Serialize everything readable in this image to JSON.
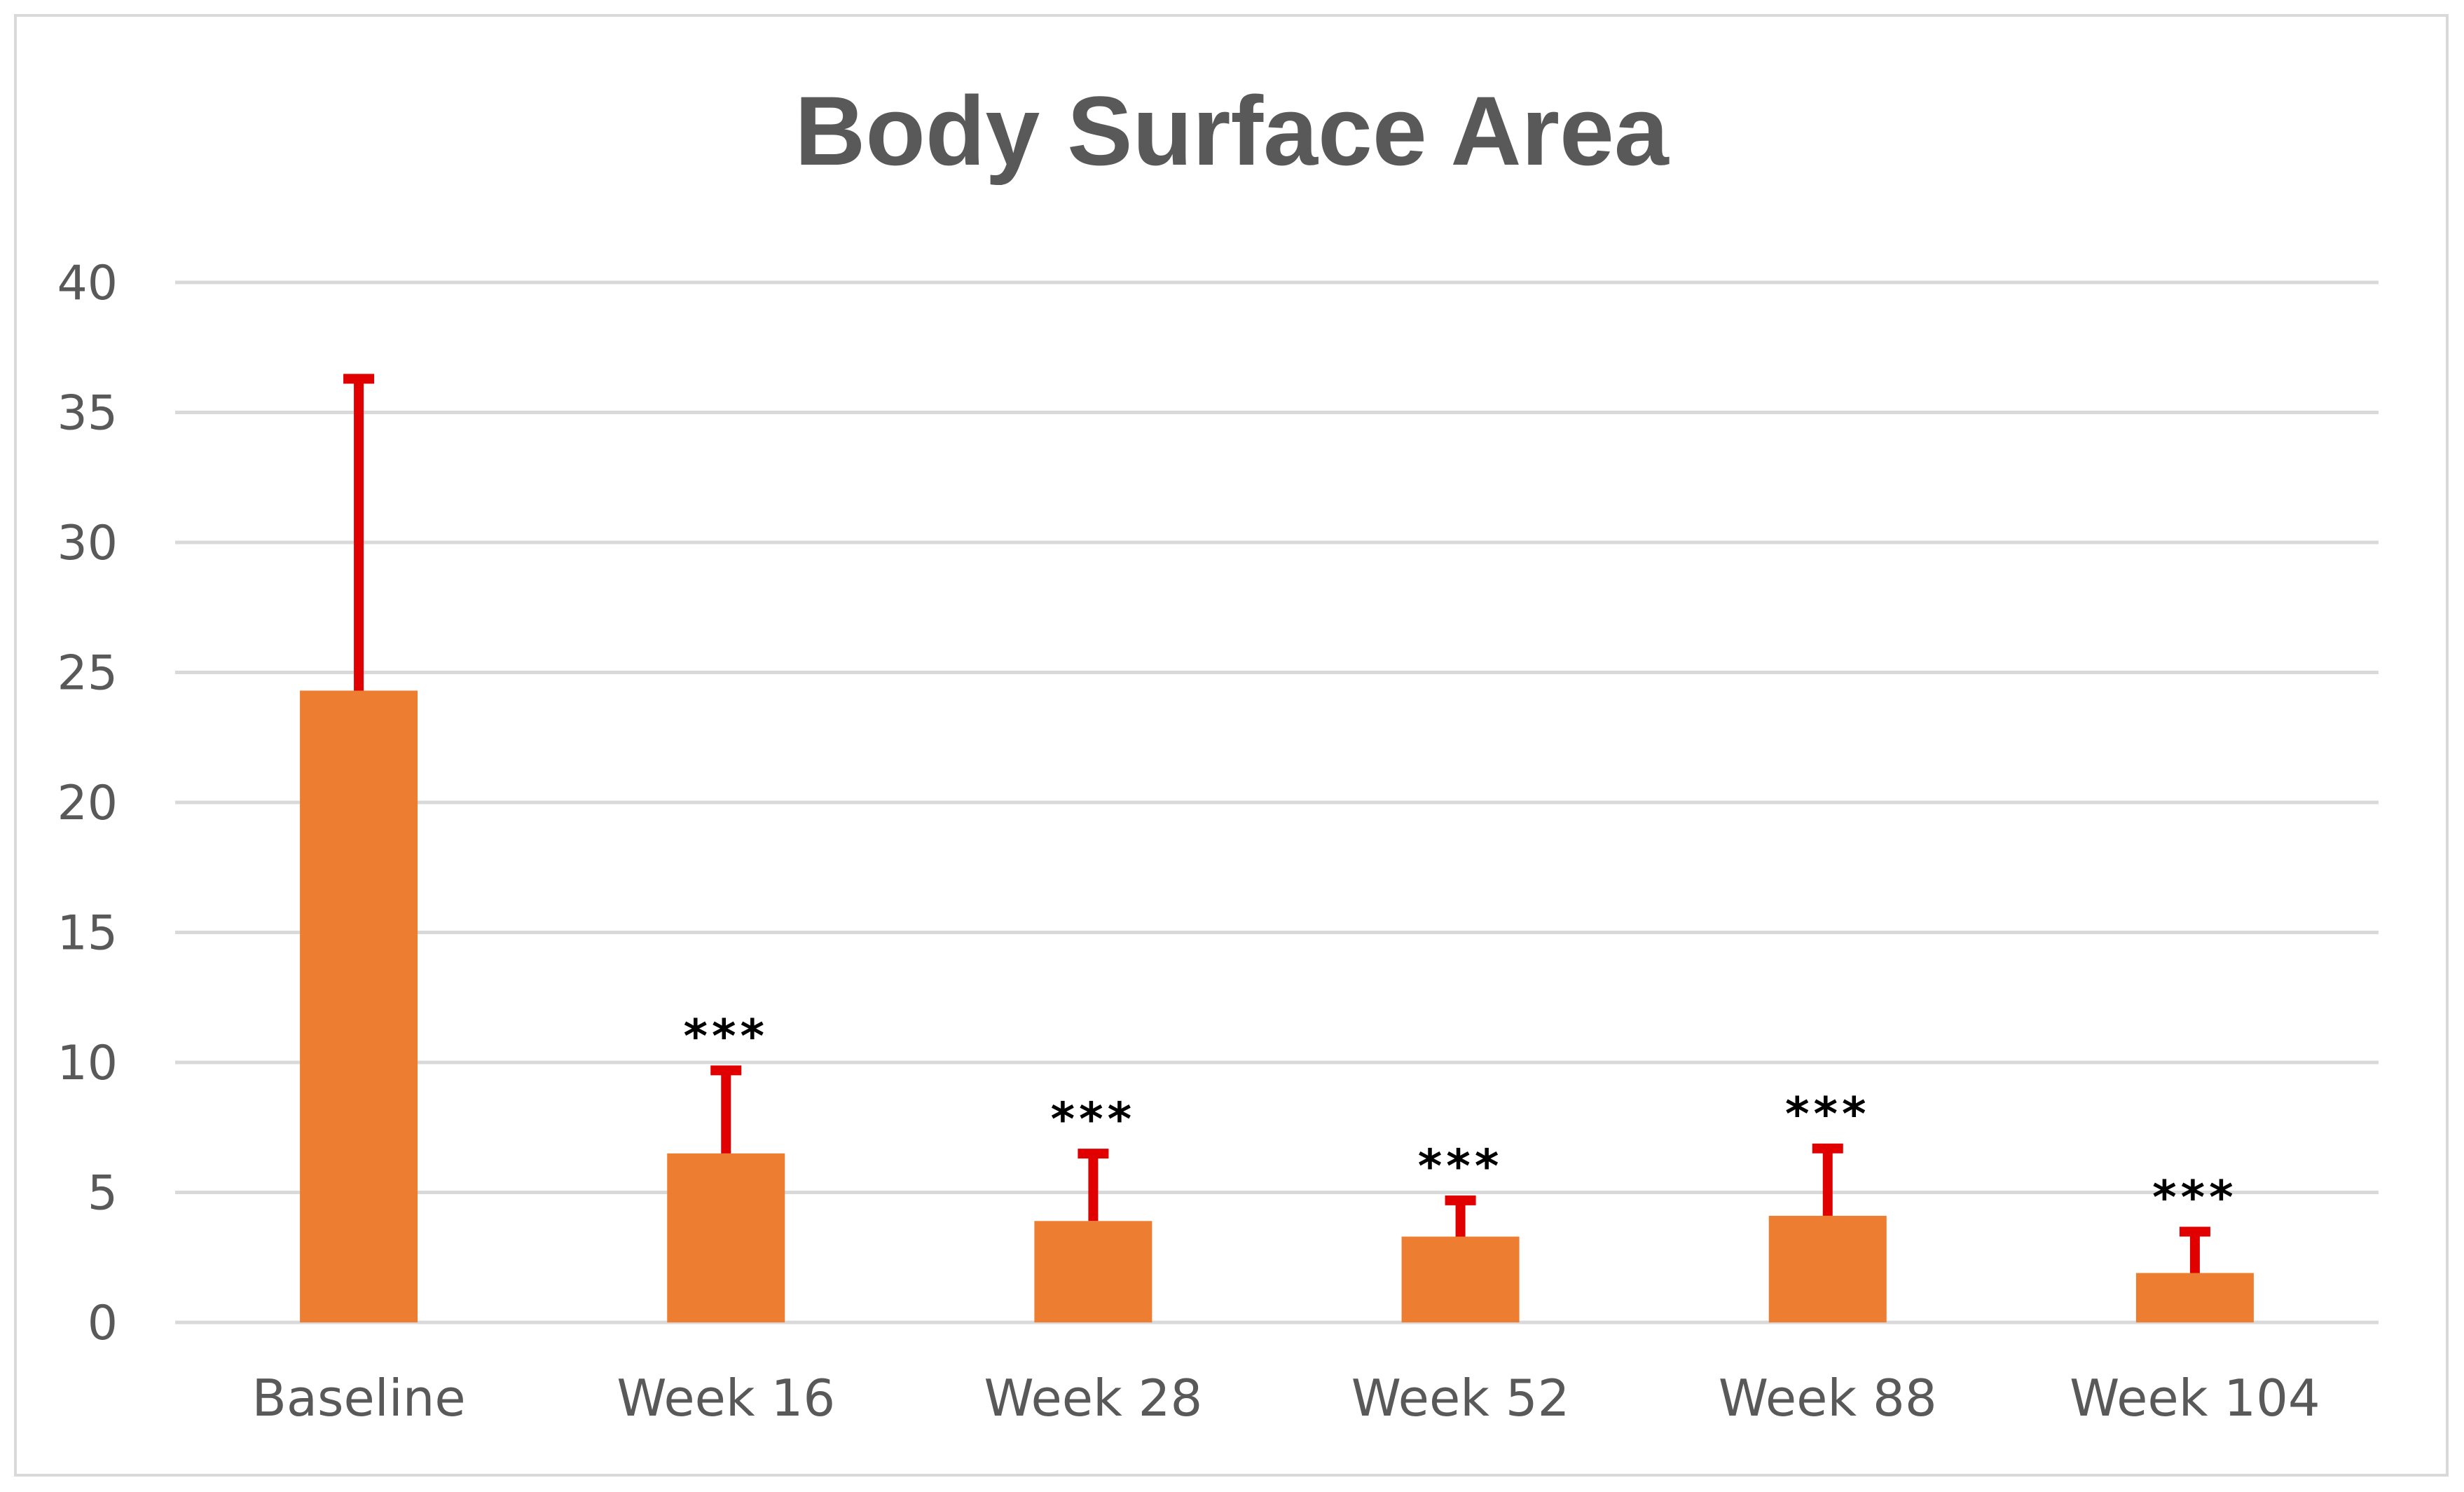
{
  "chart_data": {
    "type": "bar",
    "title": "Body Surface Area",
    "xlabel": "",
    "ylabel": "",
    "categories": [
      "Baseline",
      "Week 16",
      "Week 28",
      "Week 52",
      "Week 88",
      "Week 104"
    ],
    "values": [
      24.3,
      6.5,
      3.9,
      3.3,
      4.1,
      1.9
    ],
    "error_upper": [
      12.1,
      3.3,
      2.7,
      1.5,
      2.7,
      1.7
    ],
    "significance": [
      "",
      "***",
      "***",
      "***",
      "***",
      "***"
    ],
    "ylim": [
      0,
      40
    ],
    "yticks": [
      "0",
      "5",
      "10",
      "15",
      "20",
      "25",
      "30",
      "35",
      "40"
    ],
    "grid": true,
    "legend": "none",
    "colors": {
      "bar": "#ed7d31",
      "error_bar": "#e00000",
      "grid": "#d9d9d9",
      "text": "#595959",
      "significance": "#000000"
    }
  }
}
